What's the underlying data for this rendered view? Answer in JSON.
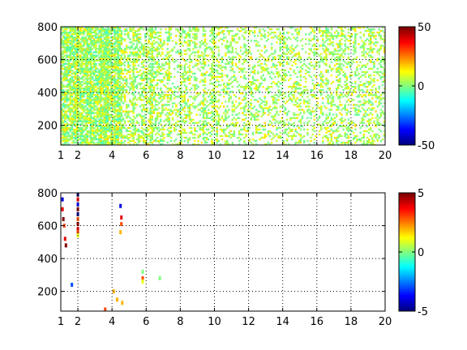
{
  "chart_data": [
    {
      "type": "heatmap",
      "title": "",
      "xlabel": "",
      "ylabel": "",
      "xlim": [
        1,
        20
      ],
      "ylim": [
        80,
        800
      ],
      "xticks": [
        1,
        2,
        4,
        6,
        8,
        10,
        12,
        14,
        16,
        18,
        20
      ],
      "yticks": [
        200,
        400,
        600,
        800
      ],
      "grid": true,
      "grid_style": "dotted",
      "colormap": "jet",
      "colorbar": {
        "min": -50,
        "max": 50,
        "ticks": [
          -50,
          0,
          50
        ]
      },
      "value_range_observed": [
        -5,
        20
      ],
      "description_of_values": "dense mostly near-zero values (cyan/green/yellow) with sparse white gaps; density decreases toward larger x"
    },
    {
      "type": "heatmap",
      "title": "",
      "xlabel": "",
      "ylabel": "",
      "xlim": [
        1,
        20
      ],
      "ylim": [
        80,
        800
      ],
      "xticks": [
        1,
        2,
        4,
        6,
        8,
        10,
        12,
        14,
        16,
        18,
        20
      ],
      "yticks": [
        200,
        400,
        600,
        800
      ],
      "grid": true,
      "grid_style": "dotted",
      "colormap": "jet",
      "colorbar": {
        "min": -5,
        "max": 5,
        "ticks": [
          -5,
          0,
          5
        ]
      },
      "points": [
        {
          "x": 1.1,
          "y": 760,
          "v": -4
        },
        {
          "x": 1.1,
          "y": 700,
          "v": 4
        },
        {
          "x": 1.15,
          "y": 640,
          "v": 5
        },
        {
          "x": 1.2,
          "y": 600,
          "v": 3
        },
        {
          "x": 1.25,
          "y": 520,
          "v": 4
        },
        {
          "x": 1.3,
          "y": 480,
          "v": 5
        },
        {
          "x": 1.65,
          "y": 240,
          "v": -3
        },
        {
          "x": 2.0,
          "y": 790,
          "v": -5
        },
        {
          "x": 2.0,
          "y": 760,
          "v": 4
        },
        {
          "x": 2.0,
          "y": 730,
          "v": -4
        },
        {
          "x": 2.0,
          "y": 700,
          "v": 5
        },
        {
          "x": 2.0,
          "y": 670,
          "v": -5
        },
        {
          "x": 2.0,
          "y": 640,
          "v": 3
        },
        {
          "x": 2.0,
          "y": 610,
          "v": 5
        },
        {
          "x": 2.0,
          "y": 580,
          "v": 4
        },
        {
          "x": 2.0,
          "y": 560,
          "v": 3
        },
        {
          "x": 2.0,
          "y": 540,
          "v": 1
        },
        {
          "x": 3.6,
          "y": 90,
          "v": 3
        },
        {
          "x": 4.1,
          "y": 200,
          "v": 2
        },
        {
          "x": 4.3,
          "y": 150,
          "v": 2
        },
        {
          "x": 4.5,
          "y": 720,
          "v": -4
        },
        {
          "x": 4.55,
          "y": 650,
          "v": 4
        },
        {
          "x": 4.55,
          "y": 610,
          "v": 3
        },
        {
          "x": 4.5,
          "y": 560,
          "v": 2
        },
        {
          "x": 4.6,
          "y": 130,
          "v": 2
        },
        {
          "x": 5.8,
          "y": 320,
          "v": 0
        },
        {
          "x": 5.8,
          "y": 280,
          "v": 3
        },
        {
          "x": 5.8,
          "y": 260,
          "v": 1
        },
        {
          "x": 6.8,
          "y": 280,
          "v": 0
        }
      ]
    }
  ]
}
